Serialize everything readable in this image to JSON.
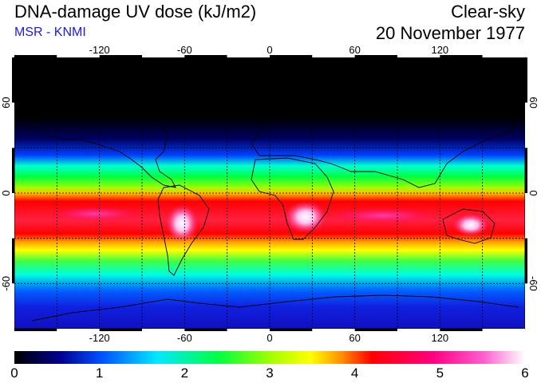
{
  "header": {
    "title": "DNA-damage UV dose (kJ/m2)",
    "source": "MSR - KNMI",
    "condition": "Clear-sky",
    "date": "20 November 1977"
  },
  "map": {
    "lon_ticks": [
      "-120",
      "-60",
      "0",
      "60",
      "120"
    ],
    "lat_ticks": [
      "60",
      "0",
      "-60"
    ],
    "lon_range": [
      -180,
      180
    ],
    "lat_range": [
      -90,
      90
    ],
    "grid_spacing_deg": 30
  },
  "colorbar": {
    "range": [
      0,
      6
    ],
    "labels": [
      "0",
      "1",
      "2",
      "3",
      "4",
      "5",
      "6"
    ],
    "stops": [
      "#000000",
      "#0000a0",
      "#0060ff",
      "#00e0ff",
      "#00ff40",
      "#a0ff00",
      "#ffff00",
      "#ff9000",
      "#ff0000",
      "#ff0080",
      "#ff40c0",
      "#ffffff"
    ]
  }
}
